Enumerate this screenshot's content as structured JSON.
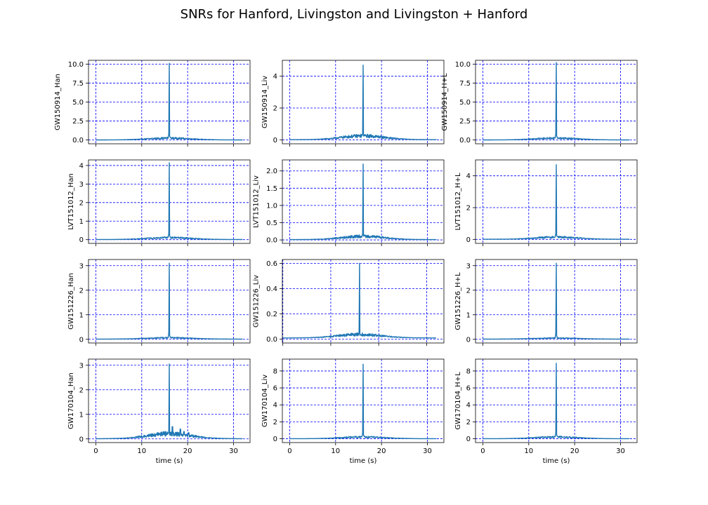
{
  "figure": {
    "title": "SNRs for Hanford, Livingston and Livingston + Hanford"
  },
  "colors": {
    "line": "#1f77b4",
    "grid": "#0000ff",
    "axis": "#000000"
  },
  "chart_data": [
    {
      "type": "line",
      "ylabel": "GW150914_Han",
      "xlabel": "",
      "xlim": [
        -1.6,
        33.6
      ],
      "ylim": [
        -0.5,
        10.5
      ],
      "yticks": [
        0.0,
        2.5,
        5.0,
        7.5,
        10.0
      ],
      "yticklabels": [
        "0.0",
        "2.5",
        "5.0",
        "7.5",
        "10.0"
      ],
      "xticks": [
        0,
        10,
        20,
        30
      ],
      "xticklabels": [],
      "grid": true,
      "peak": {
        "x": 16.0,
        "y": 10.1
      },
      "noise_level": 0.35,
      "tail_bumps": []
    },
    {
      "type": "line",
      "ylabel": "GW150914_Liv",
      "xlabel": "",
      "xlim": [
        -1.6,
        33.6
      ],
      "ylim": [
        -0.25,
        5.0
      ],
      "yticks": [
        0,
        2,
        4
      ],
      "yticklabels": [
        "0",
        "2",
        "4"
      ],
      "xticks": [
        0,
        10,
        20,
        30
      ],
      "xticklabels": [],
      "grid": true,
      "peak": {
        "x": 16.0,
        "y": 4.7
      },
      "noise_level": 0.35,
      "tail_bumps": []
    },
    {
      "type": "line",
      "ylabel": "GW150914_H+L",
      "xlabel": "",
      "xlim": [
        -1.6,
        33.6
      ],
      "ylim": [
        -0.5,
        10.5
      ],
      "yticks": [
        0.0,
        2.5,
        5.0,
        7.5,
        10.0
      ],
      "yticklabels": [
        "0.0",
        "2.5",
        "5.0",
        "7.5",
        "10.0"
      ],
      "xticks": [
        0,
        10,
        20,
        30
      ],
      "xticklabels": [],
      "grid": true,
      "peak": {
        "x": 16.0,
        "y": 10.2
      },
      "noise_level": 0.35,
      "tail_bumps": []
    },
    {
      "type": "line",
      "ylabel": "LVT151012_Han",
      "xlabel": "",
      "xlim": [
        -1.6,
        33.6
      ],
      "ylim": [
        -0.2,
        4.3
      ],
      "yticks": [
        0,
        1,
        2,
        3,
        4
      ],
      "yticklabels": [
        "0",
        "1",
        "2",
        "3",
        "4"
      ],
      "xticks": [
        0,
        10,
        20,
        30
      ],
      "xticklabels": [],
      "grid": true,
      "peak": {
        "x": 16.0,
        "y": 4.15
      },
      "noise_level": 0.15,
      "tail_bumps": []
    },
    {
      "type": "line",
      "ylabel": "LVT151012_Liv",
      "xlabel": "",
      "xlim": [
        -1.6,
        33.6
      ],
      "ylim": [
        -0.1,
        2.32
      ],
      "yticks": [
        0.0,
        0.5,
        1.0,
        1.5,
        2.0
      ],
      "yticklabels": [
        "0.0",
        "0.5",
        "1.0",
        "1.5",
        "2.0"
      ],
      "xticks": [
        0,
        10,
        20,
        30
      ],
      "xticklabels": [],
      "grid": true,
      "peak": {
        "x": 16.0,
        "y": 2.2
      },
      "noise_level": 0.14,
      "tail_bumps": []
    },
    {
      "type": "line",
      "ylabel": "LVT151012_H+L",
      "xlabel": "",
      "xlim": [
        -1.6,
        33.6
      ],
      "ylim": [
        -0.25,
        5.0
      ],
      "yticks": [
        0,
        2,
        4
      ],
      "yticklabels": [
        "0",
        "2",
        "4"
      ],
      "xticks": [
        0,
        10,
        20,
        30
      ],
      "xticklabels": [],
      "grid": true,
      "peak": {
        "x": 16.0,
        "y": 4.7
      },
      "noise_level": 0.2,
      "tail_bumps": []
    },
    {
      "type": "line",
      "ylabel": "GW151226_Han",
      "xlabel": "",
      "xlim": [
        -1.6,
        33.6
      ],
      "ylim": [
        -0.15,
        3.25
      ],
      "yticks": [
        0,
        1,
        2,
        3
      ],
      "yticklabels": [
        "0",
        "1",
        "2",
        "3"
      ],
      "xticks": [
        0,
        10,
        20,
        30
      ],
      "xticklabels": [],
      "grid": true,
      "peak": {
        "x": 16.0,
        "y": 3.1
      },
      "noise_level": 0.08,
      "tail_bumps": []
    },
    {
      "type": "line",
      "ylabel": "GW151226_Liv",
      "xlabel": "",
      "xlim": [
        -0.1,
        33.6
      ],
      "ylim": [
        -0.03,
        0.63
      ],
      "yticks": [
        0.0,
        0.2,
        0.4,
        0.6
      ],
      "yticklabels": [
        "0.0",
        "0.2",
        "0.4",
        "0.6"
      ],
      "xticks": [
        0,
        10,
        20,
        30
      ],
      "xticklabels": [],
      "grid": true,
      "peak": {
        "x": 16.0,
        "y": 0.6
      },
      "noise_level": 0.04,
      "tail_bumps": []
    },
    {
      "type": "line",
      "ylabel": "GW151226_H+L",
      "xlabel": "",
      "xlim": [
        -1.6,
        33.6
      ],
      "ylim": [
        -0.15,
        3.25
      ],
      "yticks": [
        0,
        1,
        2,
        3
      ],
      "yticklabels": [
        "0",
        "1",
        "2",
        "3"
      ],
      "xticks": [
        0,
        10,
        20,
        30
      ],
      "xticklabels": [],
      "grid": true,
      "peak": {
        "x": 16.0,
        "y": 3.1
      },
      "noise_level": 0.06,
      "tail_bumps": []
    },
    {
      "type": "line",
      "ylabel": "GW170104_Han",
      "xlabel": "time (s)",
      "xlim": [
        -1.6,
        33.6
      ],
      "ylim": [
        -0.15,
        3.25
      ],
      "yticks": [
        0,
        1,
        2,
        3
      ],
      "yticklabels": [
        "0",
        "1",
        "2",
        "3"
      ],
      "xticks": [
        0,
        10,
        20,
        30
      ],
      "xticklabels": [
        "0",
        "10",
        "20",
        "30"
      ],
      "grid": true,
      "peak": {
        "x": 16.0,
        "y": 3.05
      },
      "noise_level": 0.3,
      "tail_bumps": [
        {
          "x": 16.7,
          "y": 0.5
        },
        {
          "x": 18.4,
          "y": 0.4
        },
        {
          "x": 19.2,
          "y": 0.3
        },
        {
          "x": 20.2,
          "y": 0.25
        }
      ]
    },
    {
      "type": "line",
      "ylabel": "GW170104_Liv",
      "xlabel": "time (s)",
      "xlim": [
        -1.6,
        33.6
      ],
      "ylim": [
        -0.45,
        9.4
      ],
      "yticks": [
        0,
        2,
        4,
        6,
        8
      ],
      "yticklabels": [
        "0",
        "2",
        "4",
        "6",
        "8"
      ],
      "xticks": [
        0,
        10,
        20,
        30
      ],
      "xticklabels": [
        "0",
        "10",
        "20",
        "30"
      ],
      "grid": true,
      "peak": {
        "x": 16.0,
        "y": 8.8
      },
      "noise_level": 0.3,
      "tail_bumps": []
    },
    {
      "type": "line",
      "ylabel": "GW170104_H+L",
      "xlabel": "time (s)",
      "xlim": [
        -1.6,
        33.6
      ],
      "ylim": [
        -0.45,
        9.4
      ],
      "yticks": [
        0,
        2,
        4,
        6,
        8
      ],
      "yticklabels": [
        "0",
        "2",
        "4",
        "6",
        "8"
      ],
      "xticks": [
        0,
        10,
        20,
        30
      ],
      "xticklabels": [
        "0",
        "10",
        "20",
        "30"
      ],
      "grid": true,
      "peak": {
        "x": 16.0,
        "y": 8.9
      },
      "noise_level": 0.3,
      "tail_bumps": []
    }
  ]
}
